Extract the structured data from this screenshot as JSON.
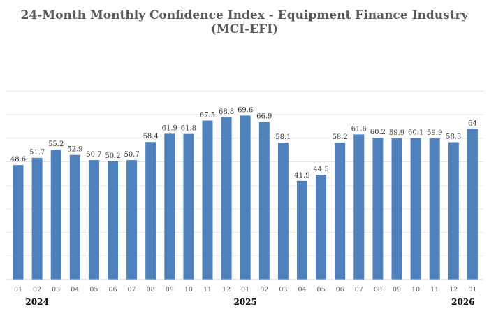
{
  "chart_data": {
    "type": "bar",
    "title_line1": "24-Month Monthly Confidence Index - Equipment Finance Industry",
    "title_line2": "(MCI-EFI)",
    "categories": [
      "01",
      "02",
      "03",
      "04",
      "05",
      "06",
      "07",
      "08",
      "09",
      "10",
      "11",
      "12",
      "01",
      "02",
      "03",
      "04",
      "05",
      "06",
      "07",
      "08",
      "09",
      "10",
      "11",
      "12",
      "01"
    ],
    "values": [
      48.6,
      51.7,
      55.2,
      52.9,
      50.7,
      50.2,
      50.7,
      58.4,
      61.9,
      61.8,
      67.5,
      68.8,
      69.6,
      66.9,
      58.1,
      41.9,
      44.5,
      58.2,
      61.6,
      60.2,
      59.9,
      60.1,
      59.9,
      58.3,
      64
    ],
    "value_labels": [
      "48.6",
      "51.7",
      "55.2",
      "52.9",
      "50.7",
      "50.2",
      "50.7",
      "58.4",
      "61.9",
      "61.8",
      "67.5",
      "68.8",
      "69.6",
      "66.9",
      "58.1",
      "41.9",
      "44.5",
      "58.2",
      "61.6",
      "60.2",
      "59.9",
      "60.1",
      "59.9",
      "58.3",
      "64"
    ],
    "year_labels": [
      {
        "text": "2024",
        "category_index": 1
      },
      {
        "text": "2025",
        "category_index": 12
      },
      {
        "text": "2026",
        "category_index": 23.5
      }
    ],
    "ylim": [
      0,
      80
    ],
    "grid": true,
    "bar_color": "#4f81bd",
    "xlabel": "",
    "ylabel": ""
  }
}
